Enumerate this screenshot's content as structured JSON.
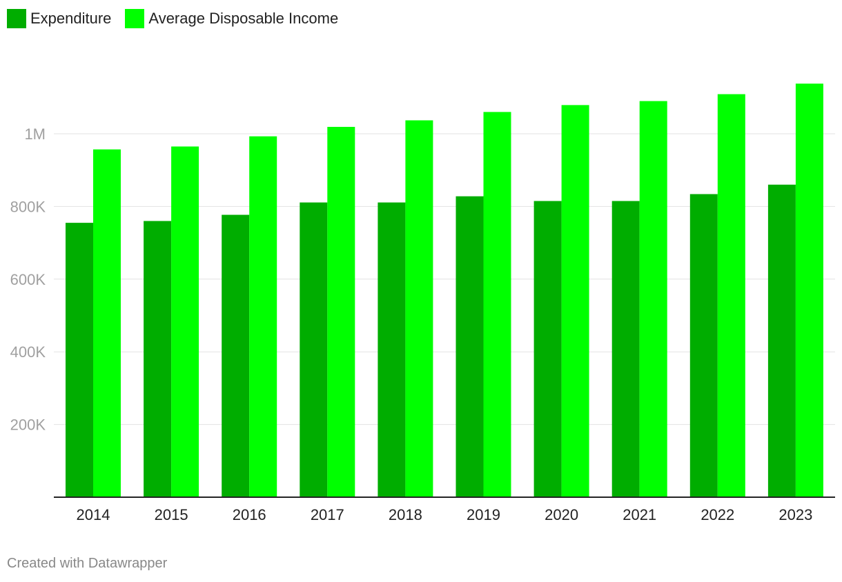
{
  "legend": {
    "items": [
      {
        "label": "Expenditure",
        "color": "#00ad00"
      },
      {
        "label": "Average Disposable Income",
        "color": "#00ff00"
      }
    ]
  },
  "footer": {
    "credit": "Created with Datawrapper"
  },
  "chart_data": {
    "type": "bar",
    "categories": [
      "2014",
      "2015",
      "2016",
      "2017",
      "2018",
      "2019",
      "2020",
      "2021",
      "2022",
      "2023"
    ],
    "series": [
      {
        "name": "Expenditure",
        "color": "#00ad00",
        "values": [
          755000,
          760000,
          777000,
          811000,
          811000,
          828000,
          815000,
          815000,
          834000,
          860000
        ]
      },
      {
        "name": "Average Disposable Income",
        "color": "#00ff00",
        "values": [
          957000,
          965000,
          993000,
          1019000,
          1037000,
          1060000,
          1079000,
          1090000,
          1109000,
          1138000
        ]
      }
    ],
    "yticks": [
      {
        "value": 200000,
        "label": "200K"
      },
      {
        "value": 400000,
        "label": "400K"
      },
      {
        "value": 600000,
        "label": "600K"
      },
      {
        "value": 800000,
        "label": "800K"
      },
      {
        "value": 1000000,
        "label": "1M"
      }
    ],
    "ylim": [
      0,
      1150000
    ],
    "grid": true,
    "legend_position": "top-left"
  }
}
